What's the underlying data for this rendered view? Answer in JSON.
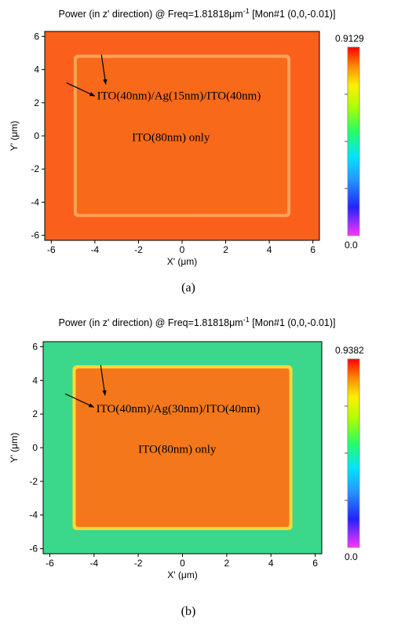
{
  "chart_data": [
    {
      "type": "heatmap",
      "title": "Power (in z' direction) @ Freq=1.81818",
      "title_unit": "μm",
      "title_sup": "-1",
      "title_suffix": " [Mon#1 (0,0,-0.01)]",
      "xlabel": "X' (μm)",
      "ylabel": "Y' (μm)",
      "xlim": [
        -6.3,
        6.3
      ],
      "ylim": [
        -6.3,
        6.3
      ],
      "xticks": [
        -6,
        -4,
        -2,
        0,
        2,
        4,
        6
      ],
      "yticks": [
        -6,
        -4,
        -2,
        0,
        2,
        4,
        6
      ],
      "colorbar": {
        "min": 0.0,
        "max": 0.9129,
        "min_label": "0.0",
        "max_label": "0.9129"
      },
      "regions": [
        {
          "name": "ITO(40nm)/Ag(15nm)/ITO(40nm)",
          "x": [
            -6.3,
            6.3
          ],
          "y": [
            -6.3,
            6.3
          ],
          "value": 0.86,
          "color": "#fb5f1c"
        },
        {
          "name": "ITO(80nm) only",
          "x": [
            -4.9,
            4.9
          ],
          "y": [
            -4.8,
            4.8
          ],
          "value": 0.88,
          "color": "#f86a1a"
        }
      ],
      "annotations": [
        {
          "text": "ITO(40nm)/Ag(15nm)/ITO(40nm)"
        },
        {
          "text": "ITO(80nm) only"
        }
      ],
      "caption": "(a)",
      "colors": {
        "outer": "#fb5f1c",
        "inner": "#f86a1a",
        "edge": "#fda25a"
      }
    },
    {
      "type": "heatmap",
      "title": "Power (in z' direction) @ Freq=1.81818",
      "title_unit": "μm",
      "title_sup": "-1",
      "title_suffix": " [Mon#1 (0,0,-0.01)]",
      "xlabel": "X' (μm)",
      "ylabel": "Y' (μm)",
      "xlim": [
        -6.3,
        6.3
      ],
      "ylim": [
        -6.3,
        6.3
      ],
      "xticks": [
        -6,
        -4,
        -2,
        0,
        2,
        4,
        6
      ],
      "yticks": [
        -6,
        -4,
        -2,
        0,
        2,
        4,
        6
      ],
      "colorbar": {
        "min": 0.0,
        "max": 0.9382,
        "min_label": "0.0",
        "max_label": "0.9382"
      },
      "regions": [
        {
          "name": "ITO(40nm)/Ag(30nm)/ITO(40nm)",
          "x": [
            -6.3,
            6.3
          ],
          "y": [
            -6.3,
            6.3
          ],
          "value": 0.45,
          "color": "#3bd88c"
        },
        {
          "name": "ITO(80nm) only",
          "x": [
            -4.9,
            4.9
          ],
          "y": [
            -4.8,
            4.8
          ],
          "value": 0.88,
          "color": "#f4781b"
        }
      ],
      "annotations": [
        {
          "text": "ITO(40nm)/Ag(30nm)/ITO(40nm)"
        },
        {
          "text": "ITO(80nm) only"
        }
      ],
      "caption": "(b)",
      "colors": {
        "outer": "#3bd88c",
        "inner": "#f4781b",
        "edge": "#fcd83a"
      }
    }
  ]
}
